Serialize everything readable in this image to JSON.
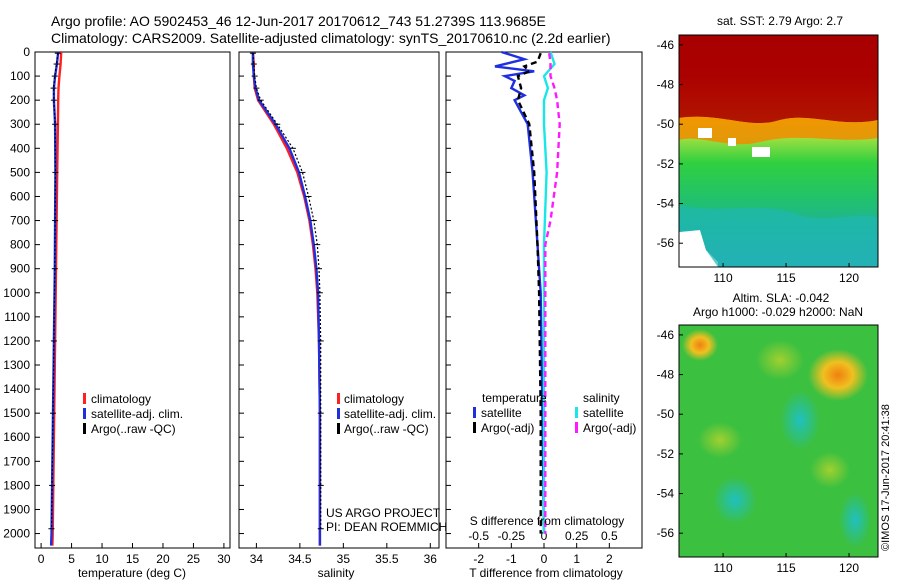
{
  "header": {
    "line1": "Argo profile: AO 5902453_46 12-Jun-2017 20170612_743 51.2739S 113.9685E",
    "line2": "Climatology: CARS2009. Satellite-adjusted climatology: synTS_20170610.nc (2.2d earlier)"
  },
  "colors": {
    "clim": "#ff2020",
    "sat": "#1f2fe0",
    "argo": "#000000",
    "sal_sat": "#19e6e6",
    "sal_argo": "#ff19ff"
  },
  "y_axis": {
    "ticks": [
      0,
      100,
      200,
      300,
      400,
      500,
      600,
      700,
      800,
      900,
      1000,
      1100,
      1200,
      1300,
      1400,
      1500,
      1600,
      1700,
      1800,
      1900,
      2000
    ],
    "ylim": [
      0,
      2060
    ]
  },
  "chart_data": [
    {
      "id": "temperature",
      "type": "line",
      "xlabel": "temperature (deg C)",
      "xlim": [
        -1,
        31
      ],
      "xticks": [
        0,
        5,
        10,
        15,
        20,
        25,
        30
      ],
      "legend": [
        "climatology",
        "satellite-adj. clim.",
        "Argo(..raw -QC)"
      ],
      "series": [
        {
          "name": "climatology",
          "color_key": "clim",
          "depth": [
            0,
            50,
            100,
            150,
            200,
            300,
            500,
            700,
            900,
            1200,
            1500,
            1800,
            2000,
            2050
          ],
          "values": [
            3.3,
            3.2,
            3.0,
            2.85,
            2.8,
            2.75,
            2.65,
            2.55,
            2.45,
            2.3,
            2.15,
            2.0,
            1.9,
            1.85
          ]
        },
        {
          "name": "satellite-adj. clim.",
          "color_key": "sat",
          "depth": [
            0,
            50,
            100,
            150,
            200,
            300,
            500,
            700,
            900,
            1200,
            1500,
            1800,
            2000,
            2050
          ],
          "values": [
            2.8,
            2.6,
            2.3,
            2.1,
            2.1,
            2.3,
            2.35,
            2.3,
            2.25,
            2.1,
            1.95,
            1.8,
            1.7,
            1.65
          ]
        },
        {
          "name": "Argo(..raw -QC)",
          "color_key": "argo",
          "depth": [
            5,
            50,
            100,
            150,
            200,
            300,
            500,
            700,
            900,
            1200,
            1500,
            1800,
            1980
          ],
          "values": [
            2.75,
            2.55,
            2.25,
            2.05,
            2.1,
            2.3,
            2.35,
            2.3,
            2.25,
            2.1,
            1.95,
            1.8,
            1.7
          ]
        }
      ]
    },
    {
      "id": "salinity",
      "type": "line",
      "xlabel": "salinity",
      "xlim": [
        33.8,
        36.1
      ],
      "xticks": [
        34,
        34.5,
        35,
        35.5,
        36
      ],
      "legend": [
        "climatology",
        "satellite-adj. clim.",
        "Argo(..raw -QC)"
      ],
      "series": [
        {
          "name": "climatology",
          "color_key": "clim",
          "depth": [
            0,
            50,
            100,
            150,
            200,
            300,
            400,
            500,
            600,
            700,
            800,
            900,
            1000,
            1200,
            1500,
            1800,
            2050
          ],
          "values": [
            33.96,
            33.97,
            33.97,
            33.98,
            34.02,
            34.2,
            34.35,
            34.47,
            34.55,
            34.61,
            34.65,
            34.68,
            34.7,
            34.72,
            34.73,
            34.73,
            34.73
          ]
        },
        {
          "name": "satellite-adj. clim.",
          "color_key": "sat",
          "depth": [
            0,
            50,
            100,
            150,
            200,
            300,
            400,
            500,
            600,
            700,
            800,
            900,
            1000,
            1200,
            1500,
            1800,
            2050
          ],
          "values": [
            33.96,
            33.96,
            33.97,
            33.99,
            34.03,
            34.22,
            34.38,
            34.49,
            34.56,
            34.62,
            34.66,
            34.69,
            34.71,
            34.72,
            34.73,
            34.73,
            34.73
          ]
        },
        {
          "name": "Argo(..raw -QC)",
          "color_key": "argo",
          "depth": [
            5,
            50,
            100,
            150,
            200,
            300,
            400,
            500,
            600,
            700,
            800,
            900,
            1000,
            1200,
            1500,
            1800,
            1980
          ],
          "values": [
            33.96,
            33.97,
            33.98,
            34.0,
            34.05,
            34.24,
            34.42,
            34.53,
            34.6,
            34.66,
            34.7,
            34.72,
            34.73,
            34.74,
            34.74,
            34.74,
            34.74
          ]
        }
      ]
    },
    {
      "id": "difference",
      "type": "line",
      "xlabel": "T difference from climatology",
      "top_label": "S difference from climatology",
      "xlim": [
        -3,
        3
      ],
      "xticks": [
        -2,
        -1,
        0,
        1,
        2
      ],
      "s_xlim": [
        -0.75,
        0.75
      ],
      "s_xticks": [
        -0.5,
        -0.25,
        0,
        0.25,
        0.5
      ],
      "s_xticklabels": [
        "-0.5",
        "-0.25",
        "0",
        "0.25",
        "0.5"
      ],
      "legend_temperature": {
        "title": "temperature",
        "items": [
          "satellite",
          "Argo(-adj)"
        ]
      },
      "legend_salinity": {
        "title": "salinity",
        "items": [
          "satellite",
          "Argo(-adj)"
        ]
      },
      "series": [
        {
          "name": "temperature satellite",
          "color_key": "sat",
          "axis": "T",
          "depth": [
            0,
            30,
            60,
            80,
            100,
            120,
            150,
            180,
            200,
            300,
            500,
            800,
            1000,
            1500,
            2000
          ],
          "values": [
            -1.3,
            -0.6,
            -1.5,
            -0.3,
            -1.2,
            -0.9,
            -1.0,
            -0.6,
            -0.9,
            -0.5,
            -0.35,
            -0.2,
            -0.1,
            -0.05,
            0.0
          ]
        },
        {
          "name": "temperature Argo(-adj)",
          "color_key": "argo",
          "axis": "T",
          "depth": [
            5,
            40,
            60,
            80,
            100,
            150,
            200,
            300,
            500,
            800,
            1000,
            1500,
            2000
          ],
          "values": [
            -0.1,
            -0.2,
            -0.6,
            -0.45,
            -0.8,
            -0.7,
            -0.8,
            -0.45,
            -0.3,
            -0.2,
            -0.15,
            -0.1,
            -0.1
          ]
        },
        {
          "name": "salinity satellite",
          "color_key": "sal_sat",
          "axis": "S",
          "depth": [
            0,
            50,
            100,
            150,
            200,
            300,
            500,
            800,
            1000,
            1500,
            2000
          ],
          "values": [
            0.05,
            0.08,
            0.0,
            0.03,
            0.0,
            0.0,
            0.02,
            0.0,
            0.0,
            0.0,
            0.0
          ]
        },
        {
          "name": "salinity Argo(-adj)",
          "color_key": "sal_argo",
          "axis": "S",
          "depth": [
            5,
            50,
            100,
            150,
            200,
            300,
            500,
            700,
            800,
            1000,
            1500,
            2000
          ],
          "values": [
            0.04,
            0.05,
            0.05,
            0.08,
            0.1,
            0.12,
            0.1,
            0.05,
            0.01,
            0.01,
            0.01,
            0.01
          ]
        }
      ]
    }
  ],
  "maps": {
    "sst": {
      "title": "sat. SST: 2.79  Argo: 2.7",
      "yticks": [
        -46,
        -48,
        -50,
        -52,
        -54,
        -56
      ],
      "xticks": [
        110,
        115,
        120
      ]
    },
    "sla": {
      "title1": "Altim. SLA: -0.042",
      "title2": "Argo h1000: -0.029 h2000: NaN",
      "yticks": [
        -46,
        -48,
        -50,
        -52,
        -54,
        -56
      ],
      "xticks": [
        110,
        115,
        120
      ]
    }
  },
  "credits": {
    "project": "US ARGO PROJECT",
    "pi": "PI: DEAN ROEMMICH",
    "imos": "©IMOS 17-Jun-2017 20:41:38"
  }
}
